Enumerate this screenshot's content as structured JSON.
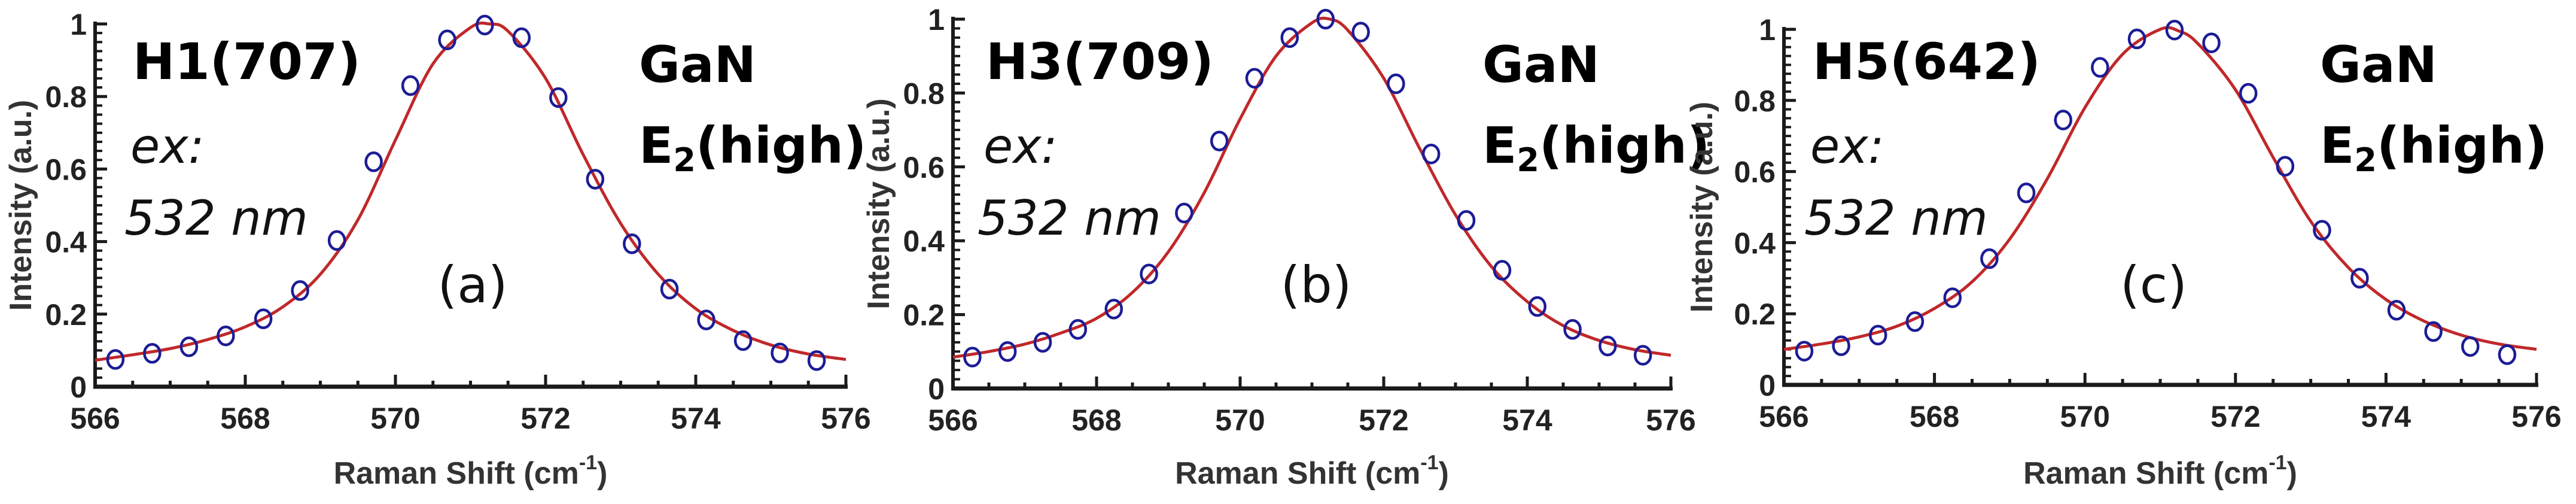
{
  "figure": {
    "panels": [
      {
        "id": "a",
        "sample_label": "H1(707)",
        "excitation_line1": "ex:",
        "excitation_line2": "532 nm",
        "mode_line1": "GaN",
        "mode_main": "E",
        "mode_sub": "2",
        "mode_rest": "(high)",
        "panel_tag": "(a)"
      },
      {
        "id": "b",
        "sample_label": "H3(709)",
        "excitation_line1": "ex:",
        "excitation_line2": "532 nm",
        "mode_line1": "GaN",
        "mode_main": "E",
        "mode_sub": "2",
        "mode_rest": "(high)",
        "panel_tag": "(b)"
      },
      {
        "id": "c",
        "sample_label": "H5(642)",
        "excitation_line1": "ex:",
        "excitation_line2": "532 nm",
        "mode_line1": "GaN",
        "mode_main": "E",
        "mode_sub": "2",
        "mode_rest": "(high)",
        "panel_tag": "(c)"
      }
    ],
    "xlabel_main": "Raman Shift (cm",
    "xlabel_sup": "-1",
    "xlabel_close": ")",
    "ylabel": "Intensity (a.u.)",
    "colors": {
      "marker": "#1c1c96",
      "fit": "#c0282a",
      "axis": "#1a1a1a",
      "text": "#000000"
    }
  },
  "chart_data": [
    {
      "type": "scatter",
      "title": "H1(707)  ex: 532 nm  GaN E2(high)  (a)",
      "xlabel": "Raman Shift (cm-1)",
      "ylabel": "Intensity (a.u.)",
      "xlim": [
        566,
        576
      ],
      "ylim": [
        0,
        1
      ],
      "xticks": [
        "566",
        "568",
        "570",
        "572",
        "574",
        "576"
      ],
      "yticks": [
        "0",
        "0.2",
        "0.4",
        "0.6",
        "0.8",
        "1"
      ],
      "grid": false,
      "series": [
        {
          "name": "measured",
          "style": "open-circle",
          "x": [
            566.27,
            566.76,
            567.25,
            567.74,
            568.24,
            568.73,
            569.22,
            569.71,
            570.2,
            570.69,
            571.19,
            571.68,
            572.17,
            572.66,
            573.15,
            573.65,
            574.14,
            574.63,
            575.12,
            575.61
          ],
          "y": [
            0.075,
            0.092,
            0.11,
            0.14,
            0.187,
            0.265,
            0.403,
            0.62,
            0.83,
            0.956,
            0.997,
            0.962,
            0.797,
            0.572,
            0.394,
            0.269,
            0.184,
            0.127,
            0.093,
            0.072
          ]
        },
        {
          "name": "fit",
          "style": "line",
          "x": [
            566,
            566.5,
            567,
            567.5,
            568,
            568.5,
            569,
            569.5,
            570,
            570.5,
            571,
            571.25,
            571.5,
            572,
            572.5,
            573,
            573.5,
            574,
            574.5,
            575,
            575.5,
            576
          ],
          "y": [
            0.073,
            0.088,
            0.105,
            0.13,
            0.165,
            0.22,
            0.31,
            0.46,
            0.68,
            0.89,
            0.99,
            1.0,
            0.98,
            0.85,
            0.64,
            0.45,
            0.31,
            0.215,
            0.155,
            0.115,
            0.09,
            0.075
          ]
        }
      ]
    },
    {
      "type": "scatter",
      "title": "H3(709)  ex: 532 nm  GaN E2(high)  (b)",
      "xlabel": "Raman Shift (cm-1)",
      "ylabel": "Intensity (a.u.)",
      "xlim": [
        566,
        576
      ],
      "ylim": [
        0,
        1
      ],
      "xticks": [
        "566",
        "568",
        "570",
        "572",
        "574",
        "576"
      ],
      "yticks": [
        "0",
        "0.2",
        "0.4",
        "0.6",
        "0.8",
        "1"
      ],
      "grid": false,
      "series": [
        {
          "name": "measured",
          "style": "open-circle",
          "x": [
            566.27,
            566.76,
            567.25,
            567.74,
            568.24,
            568.73,
            569.22,
            569.71,
            570.2,
            570.69,
            571.19,
            571.68,
            572.17,
            572.66,
            573.15,
            573.65,
            574.14,
            574.63,
            575.12,
            575.61
          ],
          "y": [
            0.085,
            0.1,
            0.125,
            0.16,
            0.215,
            0.31,
            0.475,
            0.67,
            0.84,
            0.95,
            1.0,
            0.965,
            0.825,
            0.635,
            0.455,
            0.32,
            0.222,
            0.16,
            0.115,
            0.09
          ]
        },
        {
          "name": "fit",
          "style": "line",
          "x": [
            566,
            566.5,
            567,
            567.5,
            568,
            568.5,
            569,
            569.5,
            570,
            570.5,
            571,
            571.25,
            571.5,
            572,
            572.5,
            573,
            573.5,
            574,
            574.5,
            575,
            575.5,
            576
          ],
          "y": [
            0.085,
            0.1,
            0.12,
            0.15,
            0.19,
            0.26,
            0.37,
            0.53,
            0.73,
            0.9,
            0.99,
            1.0,
            0.97,
            0.84,
            0.65,
            0.47,
            0.33,
            0.235,
            0.17,
            0.13,
            0.105,
            0.09
          ]
        }
      ]
    },
    {
      "type": "scatter",
      "title": "H5(642)  ex: 532 nm  GaN E2(high)  (c)",
      "xlabel": "Raman Shift (cm-1)",
      "ylabel": "Intensity (a.u.)",
      "xlim": [
        566,
        576
      ],
      "ylim": [
        0,
        1
      ],
      "xticks": [
        "566",
        "568",
        "570",
        "572",
        "574",
        "576"
      ],
      "yticks": [
        "0",
        "0.2",
        "0.4",
        "0.6",
        "0.8",
        "1"
      ],
      "grid": false,
      "series": [
        {
          "name": "measured",
          "style": "open-circle",
          "x": [
            566.27,
            566.76,
            567.25,
            567.74,
            568.24,
            568.73,
            569.22,
            569.71,
            570.2,
            570.69,
            571.19,
            571.68,
            572.17,
            572.66,
            573.15,
            573.65,
            574.14,
            574.63,
            575.12,
            575.61
          ],
          "y": [
            0.095,
            0.11,
            0.14,
            0.178,
            0.245,
            0.355,
            0.54,
            0.745,
            0.893,
            0.973,
            0.998,
            0.962,
            0.82,
            0.615,
            0.435,
            0.3,
            0.21,
            0.15,
            0.108,
            0.085
          ]
        },
        {
          "name": "fit",
          "style": "line",
          "x": [
            566,
            566.5,
            567,
            567.5,
            568,
            568.5,
            569,
            569.5,
            570,
            570.5,
            571,
            571.25,
            571.5,
            572,
            572.5,
            573,
            573.5,
            574,
            574.5,
            575,
            575.5,
            576
          ],
          "y": [
            0.1,
            0.115,
            0.135,
            0.165,
            0.215,
            0.29,
            0.41,
            0.58,
            0.78,
            0.93,
            1.0,
            0.995,
            0.96,
            0.83,
            0.64,
            0.46,
            0.33,
            0.24,
            0.18,
            0.14,
            0.115,
            0.1
          ]
        }
      ]
    }
  ]
}
